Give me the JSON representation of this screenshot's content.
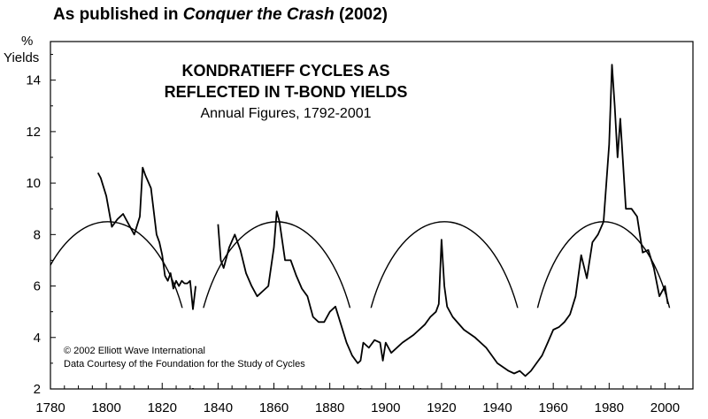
{
  "header": {
    "prefix": "As published in ",
    "book": "Conquer the Crash",
    "suffix": " (2002)"
  },
  "chart_data": {
    "type": "line",
    "title": "KONDRATIEFF CYCLES AS",
    "title_line2": "REFLECTED IN T-BOND YIELDS",
    "subtitle": "Annual Figures, 1792-2001",
    "ylabel_top": "%",
    "ylabel": "Yields",
    "xlabel": "",
    "xlim": [
      1780,
      2010
    ],
    "ylim": [
      2,
      15.5
    ],
    "x_ticks": [
      1780,
      1800,
      1820,
      1840,
      1860,
      1880,
      1900,
      1920,
      1940,
      1960,
      1980,
      2000
    ],
    "y_ticks": [
      2,
      4,
      6,
      8,
      10,
      12,
      14
    ],
    "grid": false,
    "credits": [
      "© 2002 Elliott Wave International",
      "Data Courtesy of the Foundation for the Study of Cycles"
    ],
    "cycle_arcs": [
      {
        "start": 1770,
        "end": 1831,
        "peak": 8.5
      },
      {
        "start": 1831,
        "end": 1891,
        "peak": 8.5
      },
      {
        "start": 1891,
        "end": 1951,
        "peak": 8.5
      },
      {
        "start": 1951,
        "end": 2005,
        "peak": 8.5
      }
    ],
    "series": [
      {
        "name": "Annual T-Bond Yield",
        "x": [
          1797,
          1798,
          1800,
          1802,
          1804,
          1806,
          1808,
          1810,
          1812,
          1813,
          1814,
          1816,
          1818,
          1819,
          1820,
          1821,
          1822,
          1823,
          1824,
          1825,
          1826,
          1827,
          1828,
          1829,
          1830,
          1831,
          1832,
          1840,
          1841,
          1842,
          1844,
          1846,
          1848,
          1850,
          1852,
          1854,
          1856,
          1858,
          1860,
          1861,
          1862,
          1864,
          1866,
          1868,
          1870,
          1872,
          1874,
          1876,
          1878,
          1880,
          1882,
          1884,
          1886,
          1888,
          1890,
          1891,
          1892,
          1894,
          1896,
          1898,
          1899,
          1900,
          1902,
          1906,
          1910,
          1914,
          1916,
          1918,
          1919,
          1920,
          1921,
          1922,
          1924,
          1928,
          1932,
          1936,
          1940,
          1944,
          1946,
          1948,
          1950,
          1952,
          1954,
          1956,
          1958,
          1960,
          1962,
          1964,
          1966,
          1968,
          1970,
          1972,
          1974,
          1976,
          1978,
          1980,
          1981,
          1982,
          1983,
          1984,
          1986,
          1988,
          1990,
          1992,
          1994,
          1996,
          1998,
          2000,
          2001
        ],
        "values": [
          10.4,
          10.2,
          9.5,
          8.3,
          8.6,
          8.8,
          8.4,
          8.0,
          8.7,
          10.6,
          10.3,
          9.8,
          8.0,
          7.7,
          7.2,
          6.4,
          6.2,
          6.5,
          5.9,
          6.2,
          6.0,
          6.2,
          6.1,
          6.1,
          6.2,
          5.1,
          6.0,
          8.4,
          7.0,
          6.7,
          7.5,
          8.0,
          7.4,
          6.5,
          6.0,
          5.6,
          5.8,
          6.0,
          7.5,
          8.9,
          8.5,
          7.0,
          7.0,
          6.4,
          5.9,
          5.6,
          4.8,
          4.6,
          4.6,
          5.0,
          5.2,
          4.5,
          3.8,
          3.3,
          3.0,
          3.1,
          3.8,
          3.6,
          3.9,
          3.8,
          3.1,
          3.8,
          3.4,
          3.8,
          4.1,
          4.5,
          4.8,
          5.0,
          5.3,
          7.8,
          6.0,
          5.2,
          4.8,
          4.3,
          4.0,
          3.6,
          3.0,
          2.7,
          2.6,
          2.7,
          2.5,
          2.7,
          3.0,
          3.3,
          3.8,
          4.3,
          4.4,
          4.6,
          4.9,
          5.6,
          7.2,
          6.3,
          7.7,
          8.0,
          8.5,
          11.5,
          14.6,
          13.0,
          11.0,
          12.5,
          9.0,
          9.0,
          8.7,
          7.3,
          7.4,
          6.7,
          5.6,
          6.0,
          5.3
        ]
      }
    ]
  }
}
